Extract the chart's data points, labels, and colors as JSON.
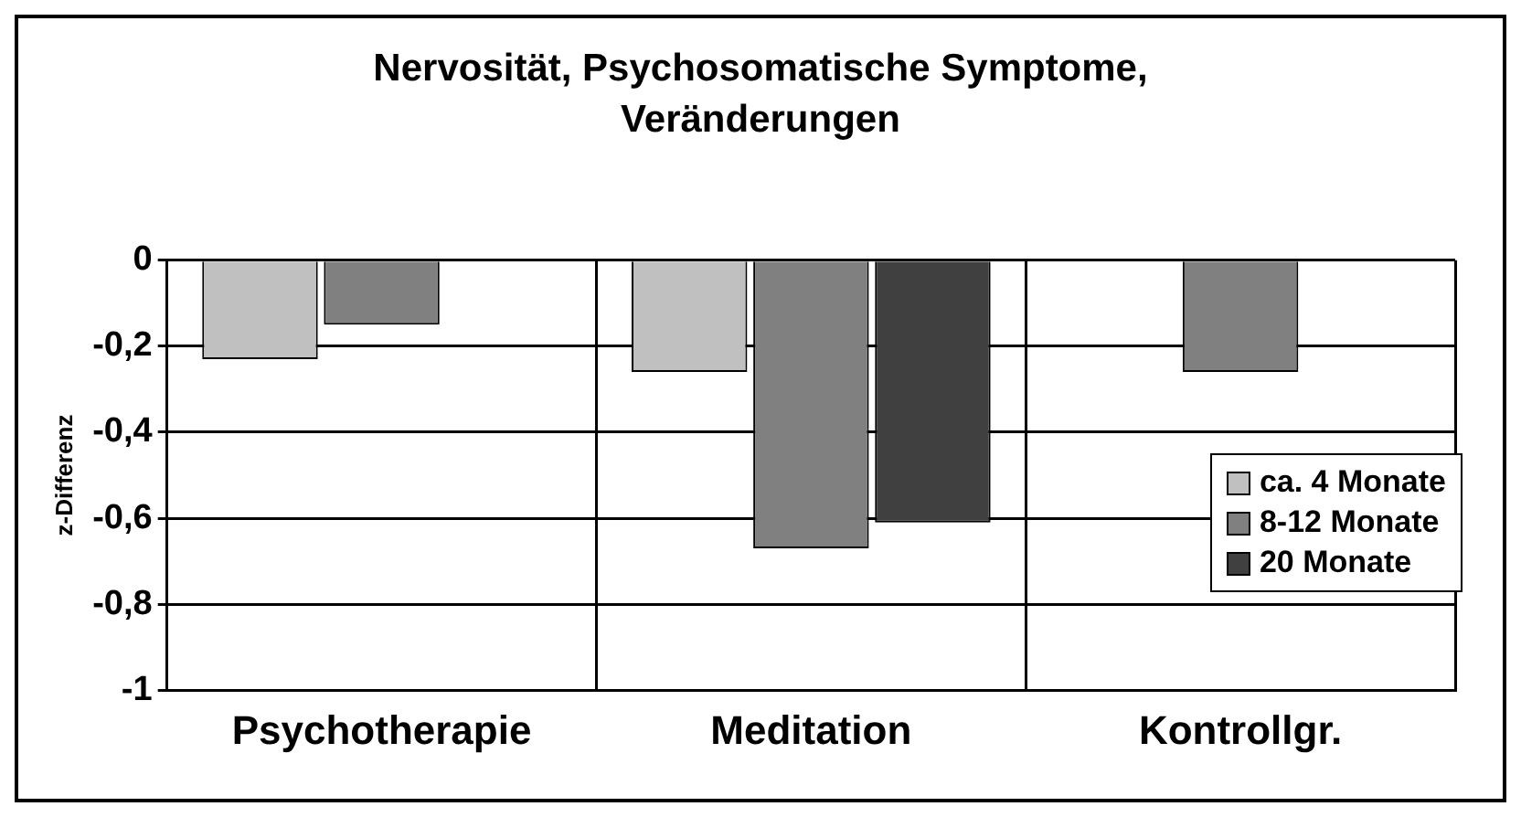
{
  "chart_data": {
    "type": "bar",
    "title": "Nervosität, Psychosomatische Symptome, Veränderungen",
    "ylabel": "z-Differenz",
    "categories": [
      "Psychotherapie",
      "Meditation",
      "Kontrollgr."
    ],
    "series": [
      {
        "name": "ca. 4 Monate",
        "color": "#c0c0c0",
        "values": [
          -0.23,
          -0.26,
          null
        ]
      },
      {
        "name": "8-12 Monate",
        "color": "#808080",
        "values": [
          -0.15,
          -0.67,
          -0.26
        ]
      },
      {
        "name": "20 Monate",
        "color": "#404040",
        "values": [
          null,
          -0.61,
          null
        ]
      }
    ],
    "ylim": [
      -1,
      0
    ],
    "yticks": [
      {
        "value": -1,
        "label": "-1"
      },
      {
        "value": -0.8,
        "label": "-0,8"
      },
      {
        "value": -0.6,
        "label": "-0,6"
      },
      {
        "value": -0.4,
        "label": "-0,4"
      },
      {
        "value": -0.2,
        "label": "-0,2"
      },
      {
        "value": 0,
        "label": "0"
      }
    ],
    "grid": true,
    "legend": "right"
  }
}
